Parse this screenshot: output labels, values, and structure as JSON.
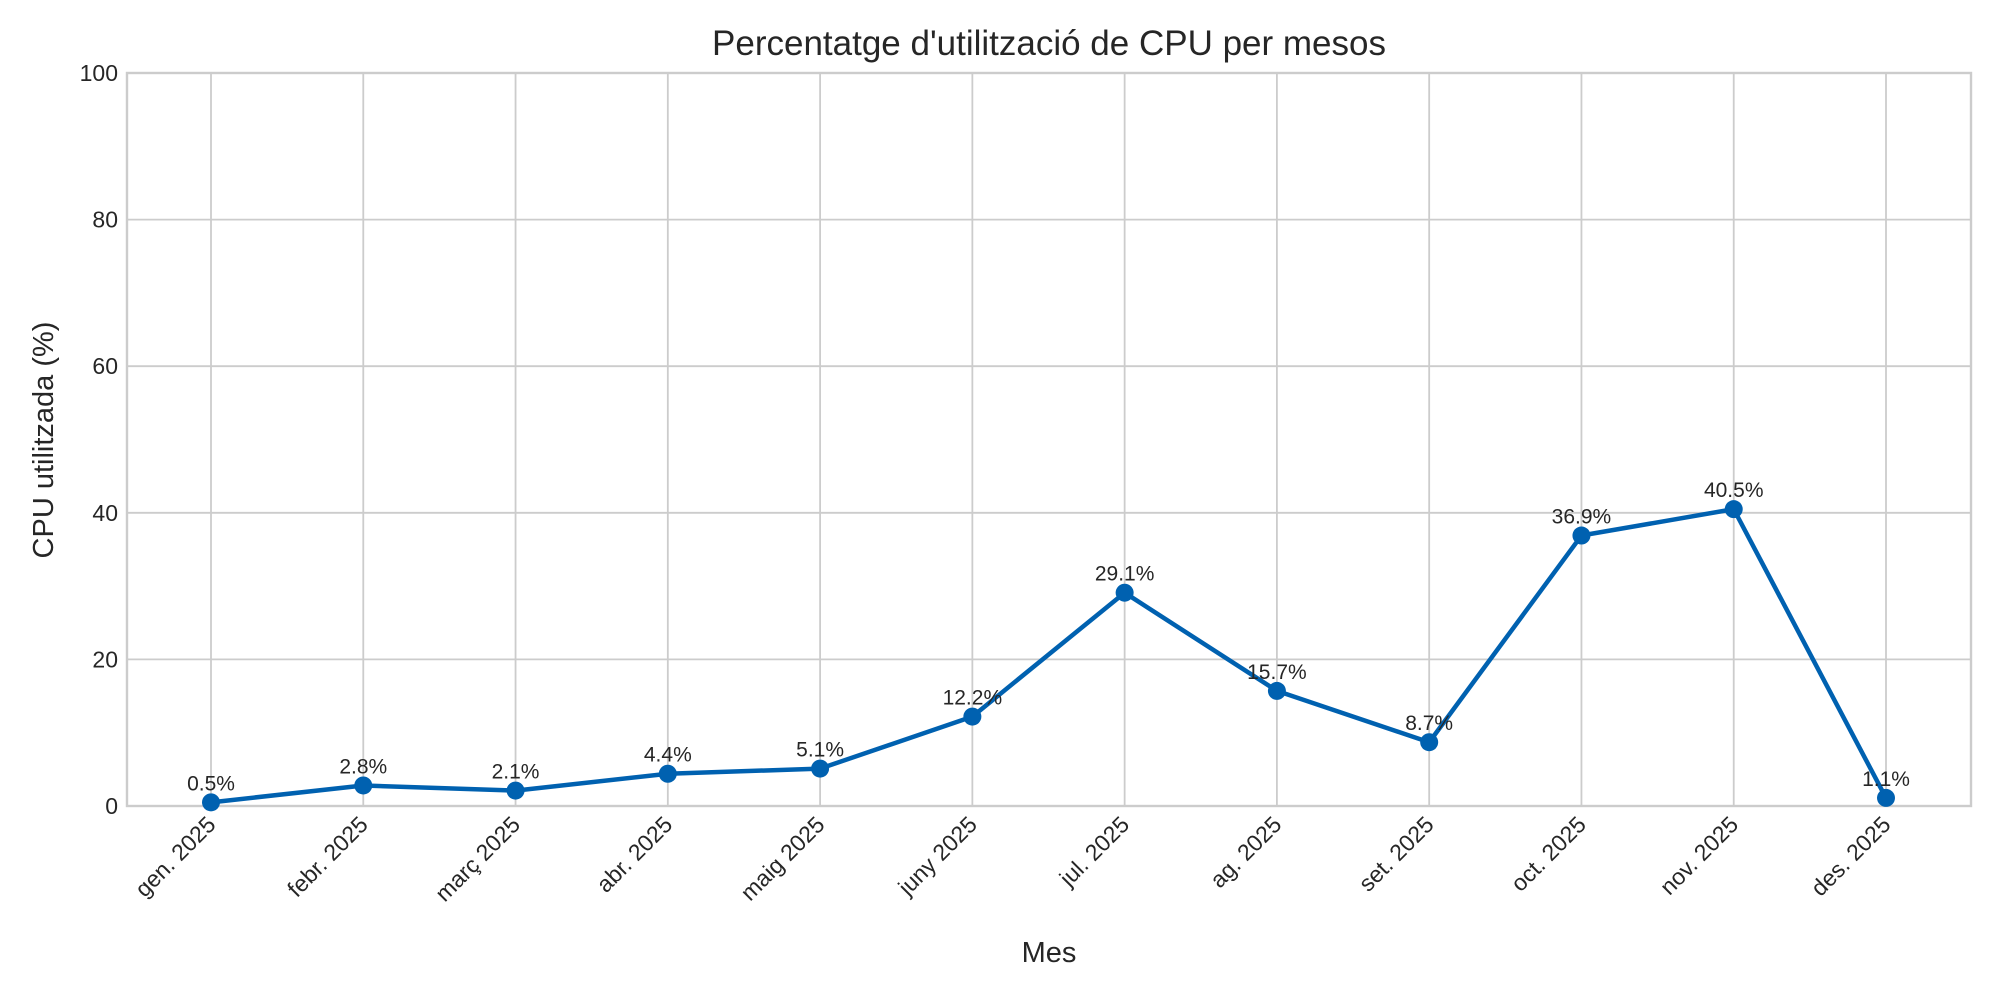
{
  "chart_data": {
    "type": "line",
    "title": "Percentatge d'utilització de CPU per mesos",
    "xlabel": "Mes",
    "ylabel": "CPU utilitzada (%)",
    "ylim": [
      0,
      100
    ],
    "yticks": [
      0,
      20,
      40,
      60,
      80,
      100
    ],
    "grid": true,
    "legend": null,
    "categories": [
      "gen. 2025",
      "febr. 2025",
      "març 2025",
      "abr. 2025",
      "maig 2025",
      "juny 2025",
      "jul. 2025",
      "ag. 2025",
      "set. 2025",
      "oct. 2025",
      "nov. 2025",
      "des. 2025"
    ],
    "series": [
      {
        "name": "CPU utilitzada (%)",
        "color": "#0061b0",
        "marker": "circle",
        "values": [
          0.5,
          2.8,
          2.1,
          4.4,
          5.1,
          12.2,
          29.1,
          15.7,
          8.7,
          36.9,
          40.5,
          1.1
        ]
      }
    ],
    "data_labels": [
      "0.5%",
      "2.8%",
      "2.1%",
      "4.4%",
      "5.1%",
      "12.2%",
      "29.1%",
      "15.7%",
      "8.7%",
      "36.9%",
      "40.5%",
      "1.1%"
    ]
  }
}
